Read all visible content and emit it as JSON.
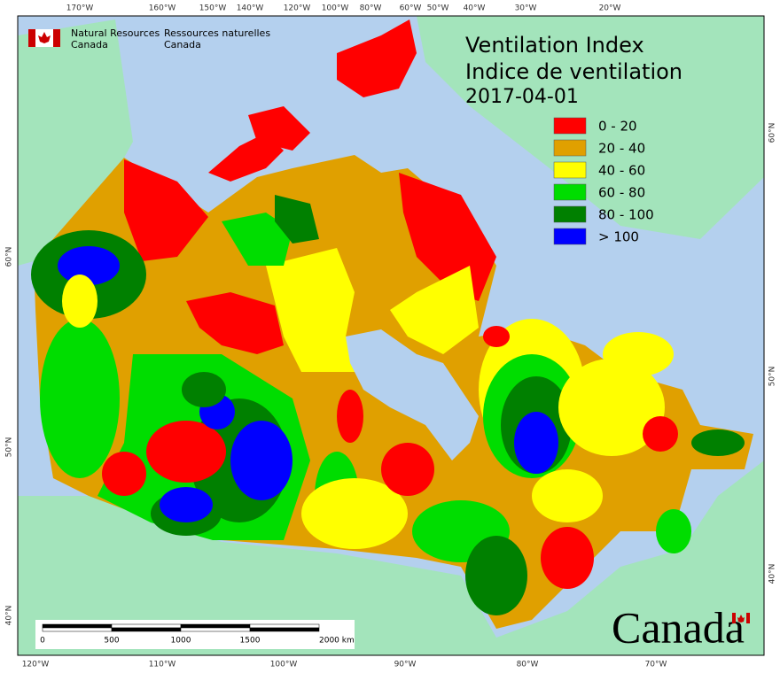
{
  "header": {
    "org_en": [
      "Natural Resources",
      "Canada"
    ],
    "org_fr": [
      "Ressources naturelles",
      "Canada"
    ]
  },
  "title": [
    "Ventilation Index",
    "Indice de ventilation",
    "2017-04-01"
  ],
  "legend": [
    {
      "label": "0 - 20",
      "color": "#ff0000"
    },
    {
      "label": "20 - 40",
      "color": "#e0a000"
    },
    {
      "label": "40 - 60",
      "color": "#ffff00"
    },
    {
      "label": "60 - 80",
      "color": "#00dd00"
    },
    {
      "label": "80 - 100",
      "color": "#008000"
    },
    {
      "label": "> 100",
      "color": "#0000ff"
    }
  ],
  "graticule": {
    "top": [
      "170°W",
      "160°W",
      "150°W",
      "140°W",
      "120°W",
      "100°W",
      "80°W",
      "60°W",
      "50°W",
      "40°W",
      "30°W",
      "20°W"
    ],
    "bottom": [
      "120°W",
      "110°W",
      "100°W",
      "90°W",
      "80°W",
      "70°W"
    ],
    "left": [
      "60°N",
      "50°N",
      "40°N"
    ],
    "right": [
      "60°N",
      "50°N",
      "40°N"
    ]
  },
  "scale_bar": {
    "labels": [
      "0",
      "500",
      "1000",
      "1500",
      "2000 km"
    ]
  },
  "wordmark": "Canada"
}
